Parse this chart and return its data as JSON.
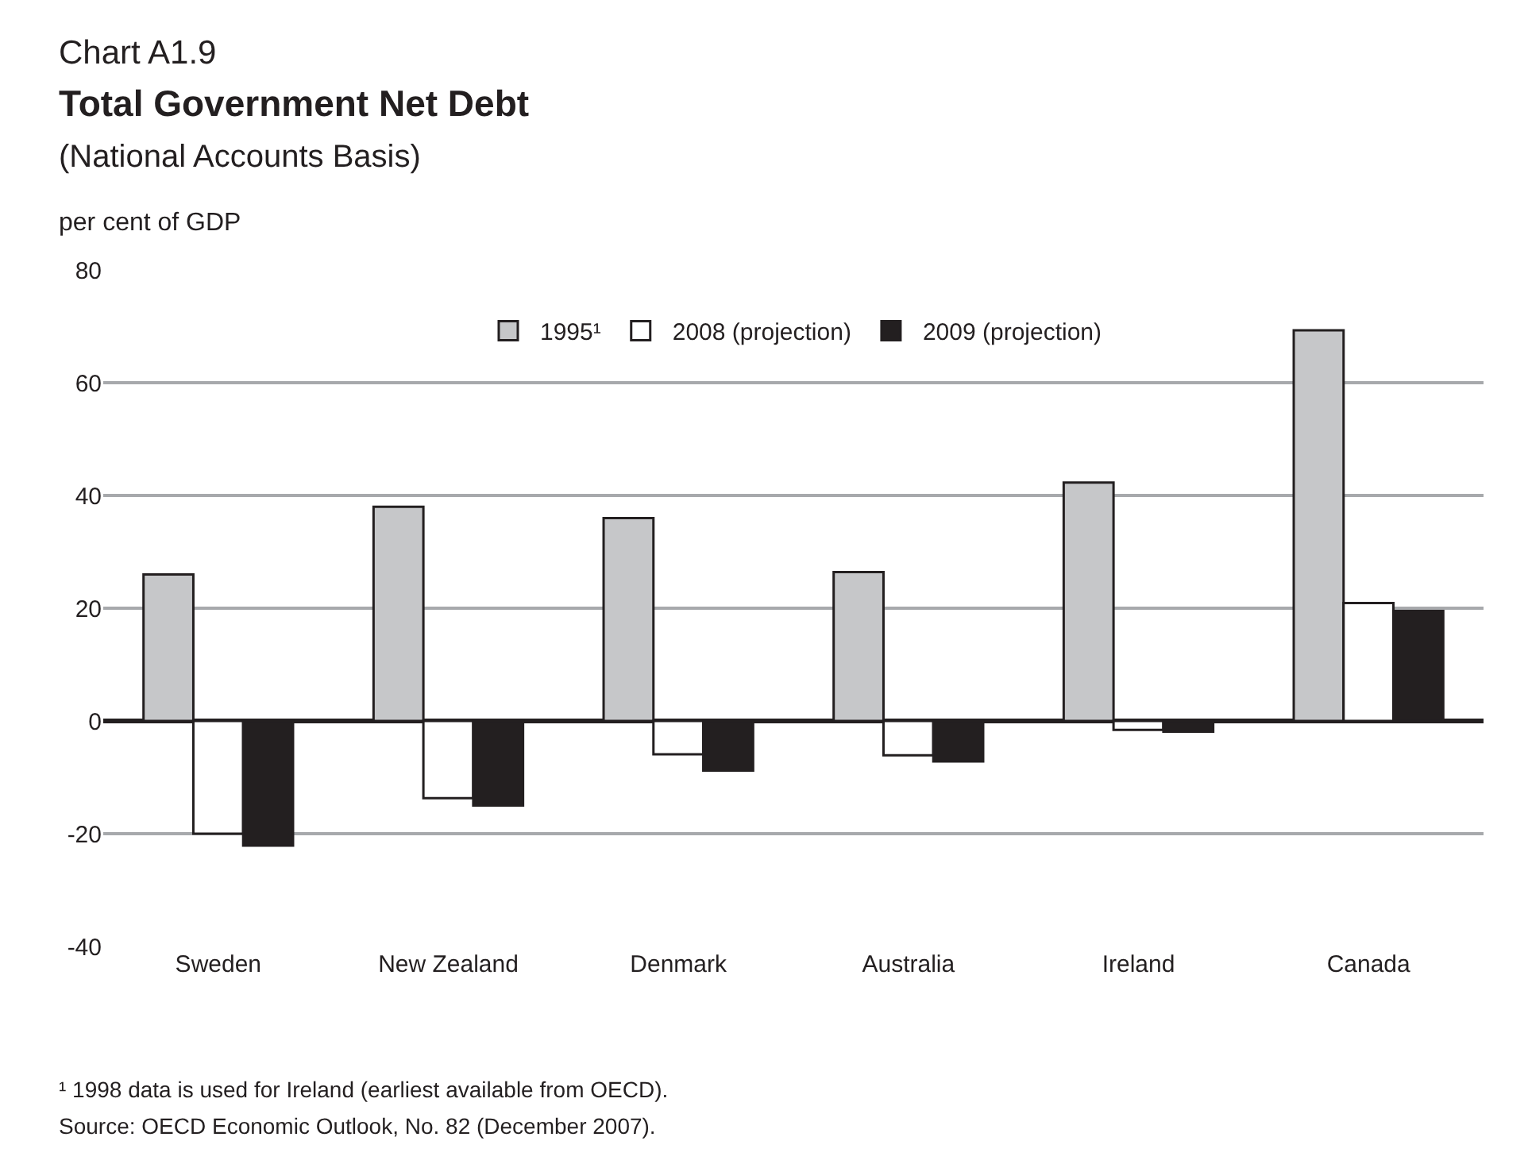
{
  "chart_data": {
    "type": "bar",
    "title": "Total Government Net Debt",
    "subtitle": "(National Accounts Basis)",
    "ylabel": "per cent of GDP",
    "categories": [
      "Sweden",
      "New Zealand",
      "Denmark",
      "Australia",
      "Ireland",
      "Canada"
    ],
    "series": [
      {
        "name": "1995¹",
        "color": "#c6c7c9",
        "values": [
          26,
          38,
          36,
          26.4,
          42.3,
          69.3
        ]
      },
      {
        "name": "2008 (projection)",
        "color": "#ffffff",
        "values": [
          -20,
          -13.7,
          -5.9,
          -6.1,
          -1.6,
          20.9
        ]
      },
      {
        "name": "2009 (projection)",
        "color": "#231f20",
        "values": [
          -22.1,
          -15,
          -8.8,
          -7.2,
          -1.9,
          19.5
        ]
      }
    ],
    "ylim": [
      -40,
      80
    ],
    "yticks": [
      -40,
      -20,
      0,
      20,
      40,
      60,
      80
    ],
    "grid": "y",
    "legend": "top",
    "annotations": [
      "Chart A1.9",
      "¹ 1998 data is used for Ireland (earliest available from OECD).",
      "Source: OECD Economic Outlook, No. 82 (December 2007)."
    ]
  }
}
